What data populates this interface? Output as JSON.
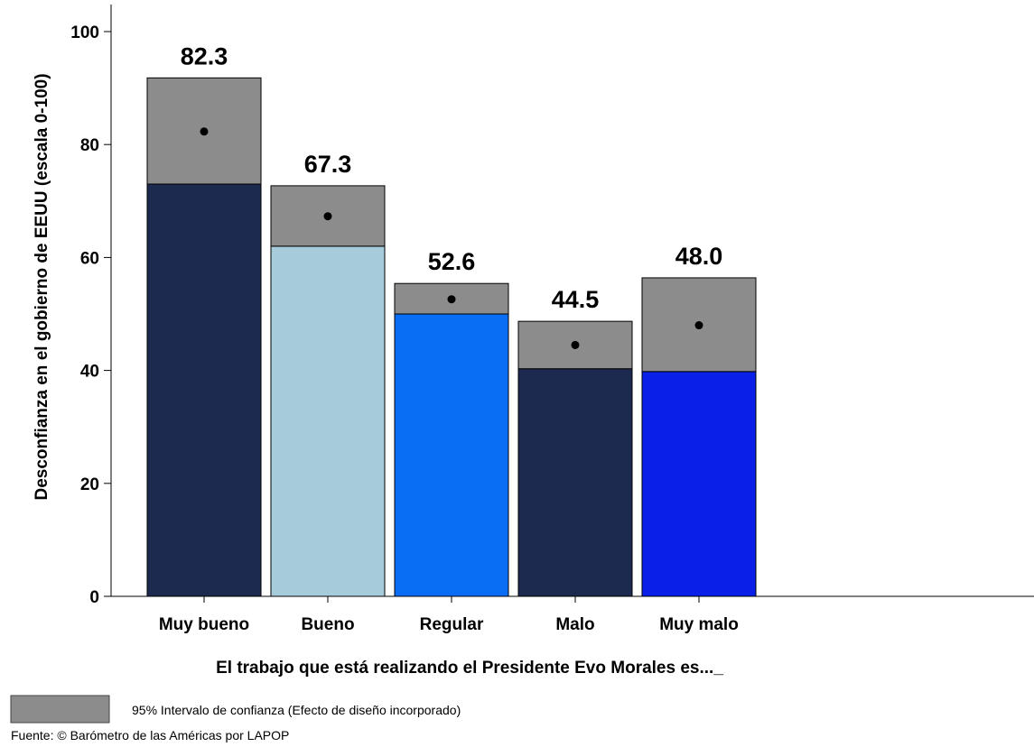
{
  "chart_data": {
    "type": "bar",
    "categories": [
      "Muy bueno",
      "Bueno",
      "Regular",
      "Malo",
      "Muy malo"
    ],
    "values": [
      82.3,
      67.3,
      52.6,
      44.5,
      48.0
    ],
    "value_labels": [
      "82.3",
      "67.3",
      "52.6",
      "44.5",
      "48.0"
    ],
    "ci_lower": [
      73.0,
      62.0,
      50.0,
      40.3,
      39.8
    ],
    "ci_upper": [
      91.8,
      72.7,
      55.4,
      48.7,
      56.4
    ],
    "bar_colors": [
      "#1b2a4e",
      "#a6cbdb",
      "#0a6ef5",
      "#1b2a4e",
      "#0a20e8"
    ],
    "ci_color": "#8c8c8c",
    "ylim": [
      0,
      100
    ],
    "yticks": [
      0,
      20,
      40,
      60,
      80,
      100
    ],
    "ylabel": "Desconfianza en el gobierno de EEUU (escala 0-100)",
    "xlabel": "El trabajo que está realizando el Presidente Evo Morales es..._",
    "grid": false,
    "legend_label": "95% Intervalo de confianza (Efecto de diseño incorporado)",
    "source": "Fuente: © Barómetro de las Américas por LAPOP"
  }
}
